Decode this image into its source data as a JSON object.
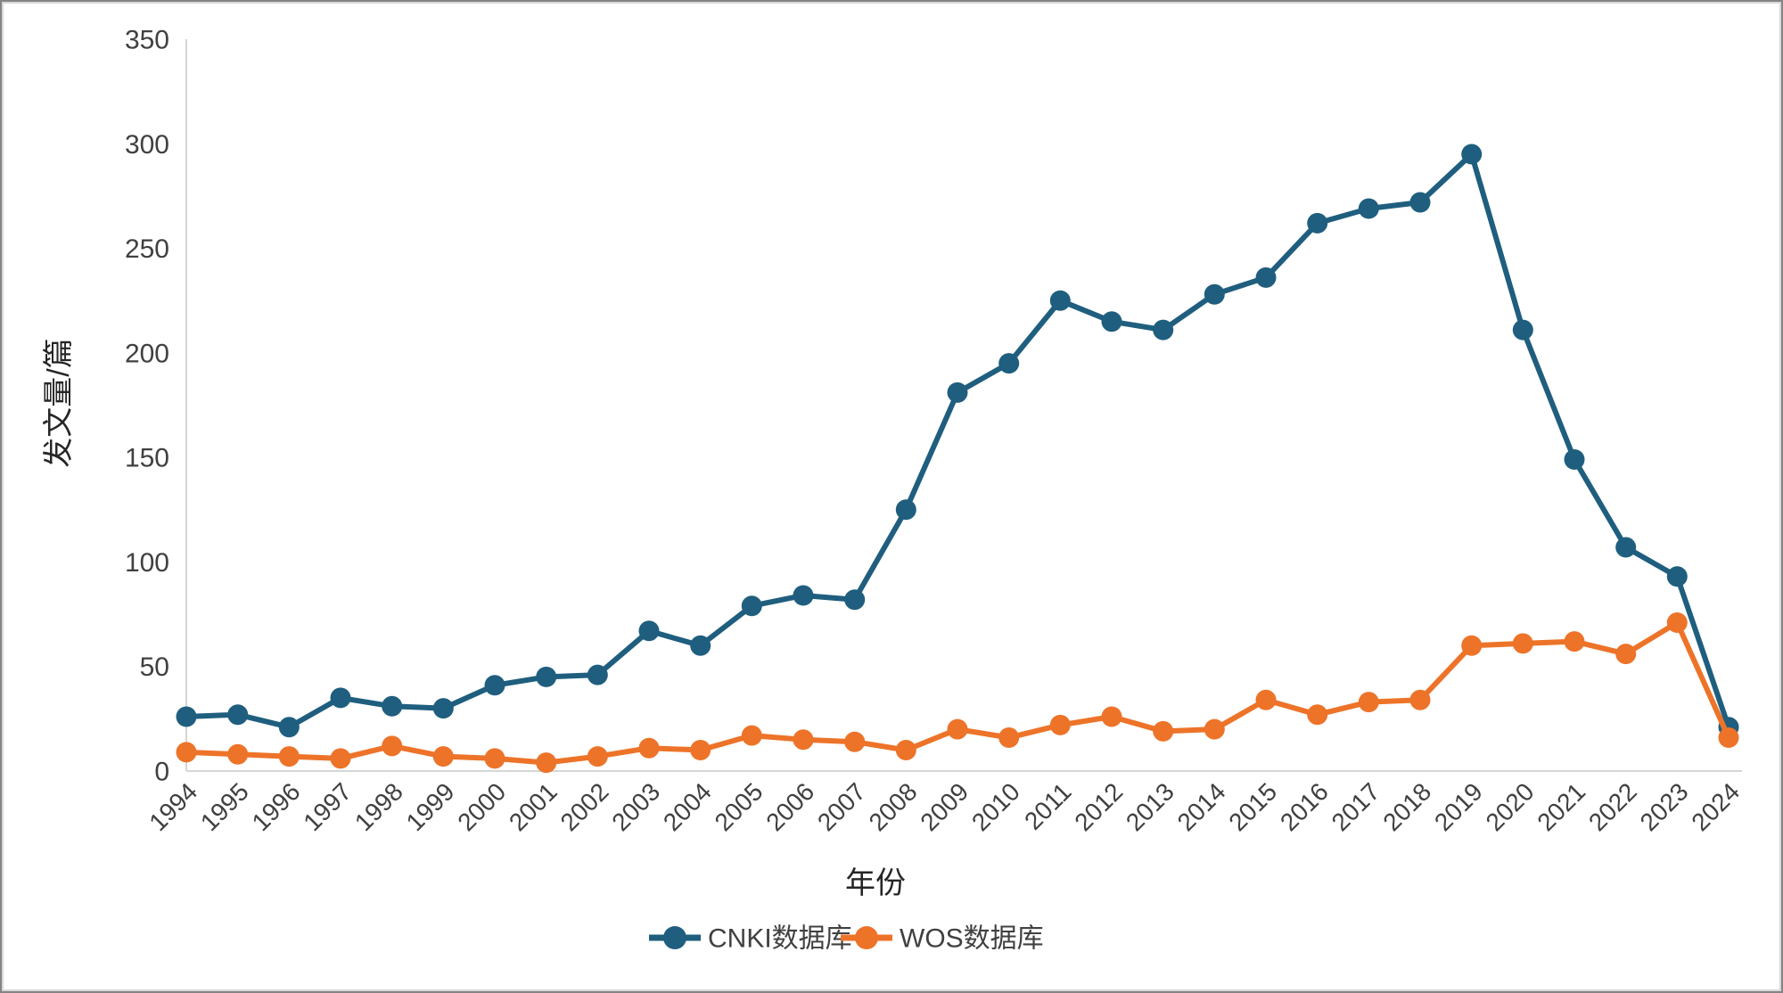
{
  "figure": {
    "background": "#ffffff",
    "border_color": "#848484"
  },
  "chart_data": {
    "type": "line",
    "xlabel": "年份",
    "ylabel": "发文量/篇",
    "x": [
      1994,
      1995,
      1996,
      1997,
      1998,
      1999,
      2000,
      2001,
      2002,
      2003,
      2004,
      2005,
      2006,
      2007,
      2008,
      2009,
      2010,
      2011,
      2012,
      2013,
      2014,
      2015,
      2016,
      2017,
      2018,
      2019,
      2020,
      2021,
      2022,
      2023,
      2024
    ],
    "series": [
      {
        "name": "CNKI数据库",
        "color": "#1f5e7e",
        "values": [
          26,
          27,
          21,
          35,
          31,
          30,
          41,
          45,
          46,
          67,
          60,
          79,
          84,
          82,
          125,
          181,
          195,
          225,
          215,
          211,
          228,
          236,
          262,
          269,
          272,
          295,
          211,
          149,
          107,
          93,
          21
        ]
      },
      {
        "name": "WOS数据库",
        "color": "#ed7329",
        "values": [
          9,
          8,
          7,
          6,
          12,
          7,
          6,
          4,
          7,
          11,
          10,
          17,
          15,
          14,
          10,
          20,
          16,
          22,
          26,
          19,
          20,
          34,
          27,
          33,
          34,
          60,
          61,
          62,
          56,
          71,
          16
        ]
      }
    ],
    "ylim": [
      0,
      350
    ],
    "ytick_step": 50,
    "yticks": [
      0,
      50,
      100,
      150,
      200,
      250,
      300,
      350
    ],
    "grid": false,
    "legend_position": "bottom-center",
    "axis_line_color": "#d6d6d6",
    "tick_label_color": "#404040",
    "axis_title_color": "#262626"
  }
}
